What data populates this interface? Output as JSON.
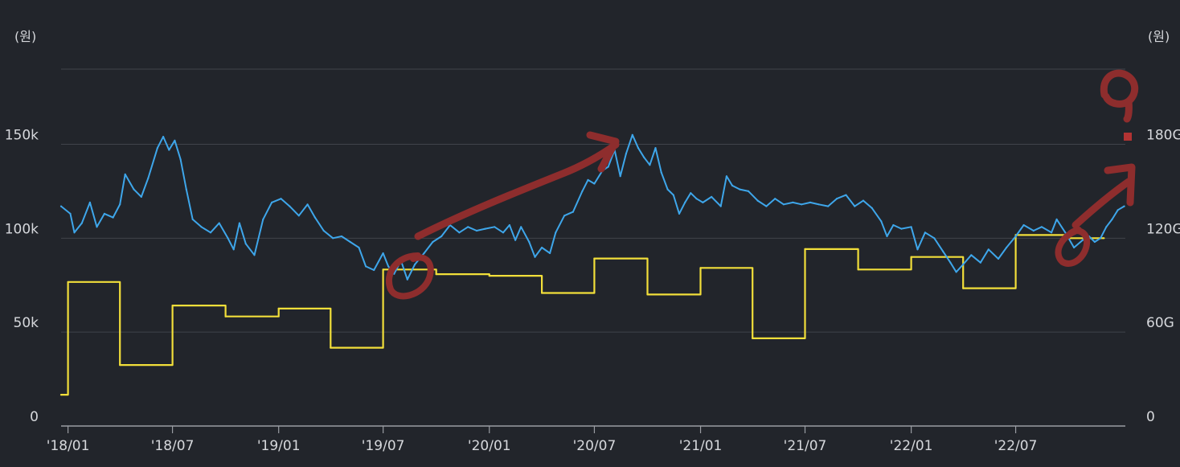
{
  "chart_data": {
    "type": "line",
    "left_unit": "(원)",
    "right_unit": "(원)",
    "x_ticks": [
      "'18/01",
      "'18/07",
      "'19/01",
      "'19/07",
      "'20/01",
      "'20/07",
      "'21/01",
      "'21/07",
      "'22/01",
      "'22/07"
    ],
    "y_left": {
      "ticks": [
        "0",
        "50k",
        "100k",
        "150k"
      ],
      "tick_values": [
        0,
        50000,
        100000,
        150000
      ],
      "ylim": [
        0,
        190000
      ]
    },
    "y_right": {
      "ticks": [
        "0",
        "60G",
        "120G",
        "180G"
      ],
      "tick_values": [
        0,
        60,
        120,
        180
      ],
      "ylim": [
        0,
        228
      ]
    },
    "grid": true,
    "series": [
      {
        "axis": "left",
        "color": "#3ea6ea",
        "style": "line",
        "points": [
          [
            "2017-12-20",
            117000
          ],
          [
            "2018-01-05",
            113000
          ],
          [
            "2018-01-12",
            103000
          ],
          [
            "2018-01-25",
            108000
          ],
          [
            "2018-02-08",
            119000
          ],
          [
            "2018-02-20",
            106000
          ],
          [
            "2018-03-05",
            113000
          ],
          [
            "2018-03-20",
            111000
          ],
          [
            "2018-04-01",
            118000
          ],
          [
            "2018-04-10",
            134000
          ],
          [
            "2018-04-25",
            126000
          ],
          [
            "2018-05-08",
            122000
          ],
          [
            "2018-05-20",
            132000
          ],
          [
            "2018-06-05",
            148000
          ],
          [
            "2018-06-15",
            154000
          ],
          [
            "2018-06-25",
            147000
          ],
          [
            "2018-07-05",
            152000
          ],
          [
            "2018-07-15",
            142000
          ],
          [
            "2018-07-25",
            126000
          ],
          [
            "2018-08-05",
            110000
          ],
          [
            "2018-08-20",
            106000
          ],
          [
            "2018-09-05",
            103000
          ],
          [
            "2018-09-20",
            108000
          ],
          [
            "2018-10-05",
            100000
          ],
          [
            "2018-10-15",
            94000
          ],
          [
            "2018-10-25",
            108000
          ],
          [
            "2018-11-05",
            97000
          ],
          [
            "2018-11-20",
            91000
          ],
          [
            "2018-12-05",
            110000
          ],
          [
            "2018-12-20",
            119000
          ],
          [
            "2019-01-05",
            121000
          ],
          [
            "2019-01-20",
            117000
          ],
          [
            "2019-02-05",
            112000
          ],
          [
            "2019-02-20",
            118000
          ],
          [
            "2019-03-05",
            111000
          ],
          [
            "2019-03-20",
            104000
          ],
          [
            "2019-04-05",
            100000
          ],
          [
            "2019-04-20",
            101000
          ],
          [
            "2019-05-05",
            98000
          ],
          [
            "2019-05-20",
            95000
          ],
          [
            "2019-06-01",
            85000
          ],
          [
            "2019-06-15",
            83000
          ],
          [
            "2019-07-01",
            92000
          ],
          [
            "2019-07-10",
            85000
          ],
          [
            "2019-07-20",
            81000
          ],
          [
            "2019-08-01",
            88000
          ],
          [
            "2019-08-12",
            78000
          ],
          [
            "2019-08-25",
            86000
          ],
          [
            "2019-09-10",
            92000
          ],
          [
            "2019-09-25",
            98000
          ],
          [
            "2019-10-10",
            101000
          ],
          [
            "2019-10-25",
            107000
          ],
          [
            "2019-11-10",
            103000
          ],
          [
            "2019-11-25",
            106000
          ],
          [
            "2019-12-10",
            104000
          ],
          [
            "2019-12-25",
            105000
          ],
          [
            "2020-01-10",
            106000
          ],
          [
            "2020-01-25",
            103000
          ],
          [
            "2020-02-05",
            107000
          ],
          [
            "2020-02-15",
            99000
          ],
          [
            "2020-02-25",
            106000
          ],
          [
            "2020-03-10",
            98000
          ],
          [
            "2020-03-20",
            90000
          ],
          [
            "2020-04-01",
            95000
          ],
          [
            "2020-04-15",
            92000
          ],
          [
            "2020-04-25",
            103000
          ],
          [
            "2020-05-10",
            112000
          ],
          [
            "2020-05-25",
            114000
          ],
          [
            "2020-06-10",
            125000
          ],
          [
            "2020-06-20",
            131000
          ],
          [
            "2020-07-01",
            129000
          ],
          [
            "2020-07-15",
            136000
          ],
          [
            "2020-07-25",
            138000
          ],
          [
            "2020-08-05",
            147000
          ],
          [
            "2020-08-15",
            133000
          ],
          [
            "2020-08-25",
            145000
          ],
          [
            "2020-09-05",
            155000
          ],
          [
            "2020-09-15",
            148000
          ],
          [
            "2020-09-25",
            143000
          ],
          [
            "2020-10-05",
            139000
          ],
          [
            "2020-10-15",
            148000
          ],
          [
            "2020-10-25",
            135000
          ],
          [
            "2020-11-05",
            126000
          ],
          [
            "2020-11-15",
            123000
          ],
          [
            "2020-11-25",
            113000
          ],
          [
            "2020-12-05",
            119000
          ],
          [
            "2020-12-15",
            124000
          ],
          [
            "2020-12-25",
            121000
          ],
          [
            "2021-01-05",
            119000
          ],
          [
            "2021-01-20",
            122000
          ],
          [
            "2021-02-05",
            117000
          ],
          [
            "2021-02-15",
            133000
          ],
          [
            "2021-02-25",
            128000
          ],
          [
            "2021-03-10",
            126000
          ],
          [
            "2021-03-25",
            125000
          ],
          [
            "2021-04-10",
            120000
          ],
          [
            "2021-04-25",
            117000
          ],
          [
            "2021-05-10",
            121000
          ],
          [
            "2021-05-25",
            118000
          ],
          [
            "2021-06-10",
            119000
          ],
          [
            "2021-06-25",
            118000
          ],
          [
            "2021-07-10",
            119000
          ],
          [
            "2021-07-25",
            118000
          ],
          [
            "2021-08-10",
            117000
          ],
          [
            "2021-08-25",
            121000
          ],
          [
            "2021-09-10",
            123000
          ],
          [
            "2021-09-25",
            117000
          ],
          [
            "2021-10-10",
            120000
          ],
          [
            "2021-10-25",
            116000
          ],
          [
            "2021-11-10",
            109000
          ],
          [
            "2021-11-20",
            101000
          ],
          [
            "2021-12-01",
            107000
          ],
          [
            "2021-12-15",
            105000
          ],
          [
            "2022-01-01",
            106000
          ],
          [
            "2022-01-12",
            94000
          ],
          [
            "2022-01-25",
            103000
          ],
          [
            "2022-02-10",
            100000
          ],
          [
            "2022-02-25",
            93000
          ],
          [
            "2022-03-10",
            87000
          ],
          [
            "2022-03-20",
            82000
          ],
          [
            "2022-04-01",
            86000
          ],
          [
            "2022-04-15",
            91000
          ],
          [
            "2022-05-01",
            87000
          ],
          [
            "2022-05-15",
            94000
          ],
          [
            "2022-06-01",
            89000
          ],
          [
            "2022-06-15",
            95000
          ],
          [
            "2022-07-01",
            101000
          ],
          [
            "2022-07-15",
            107000
          ],
          [
            "2022-08-01",
            104000
          ],
          [
            "2022-08-15",
            106000
          ],
          [
            "2022-09-01",
            103000
          ],
          [
            "2022-09-10",
            110000
          ],
          [
            "2022-09-25",
            103000
          ],
          [
            "2022-10-10",
            95000
          ],
          [
            "2022-10-25",
            99000
          ],
          [
            "2022-11-05",
            101000
          ],
          [
            "2022-11-15",
            98000
          ],
          [
            "2022-11-25",
            100000
          ],
          [
            "2022-12-05",
            106000
          ],
          [
            "2022-12-15",
            110000
          ],
          [
            "2022-12-25",
            115000
          ],
          [
            "2023-01-05",
            117000
          ]
        ]
      },
      {
        "axis": "right",
        "color": "#f2df3a",
        "style": "step",
        "points": [
          [
            "2017-12-20",
            20
          ],
          [
            "2018-01-01",
            92
          ],
          [
            "2018-04-01",
            39
          ],
          [
            "2018-07-01",
            77
          ],
          [
            "2018-10-01",
            70
          ],
          [
            "2019-01-01",
            75
          ],
          [
            "2019-04-01",
            50
          ],
          [
            "2019-07-01",
            100
          ],
          [
            "2019-10-01",
            97
          ],
          [
            "2020-01-01",
            96
          ],
          [
            "2020-04-01",
            85
          ],
          [
            "2020-07-01",
            107
          ],
          [
            "2020-10-01",
            84
          ],
          [
            "2021-01-01",
            101
          ],
          [
            "2021-04-01",
            56
          ],
          [
            "2021-07-01",
            113
          ],
          [
            "2021-10-01",
            100
          ],
          [
            "2022-01-01",
            108
          ],
          [
            "2022-04-01",
            88
          ],
          [
            "2022-07-01",
            122
          ],
          [
            "2022-10-01",
            120
          ],
          [
            "2022-12-01",
            120
          ]
        ]
      }
    ]
  }
}
